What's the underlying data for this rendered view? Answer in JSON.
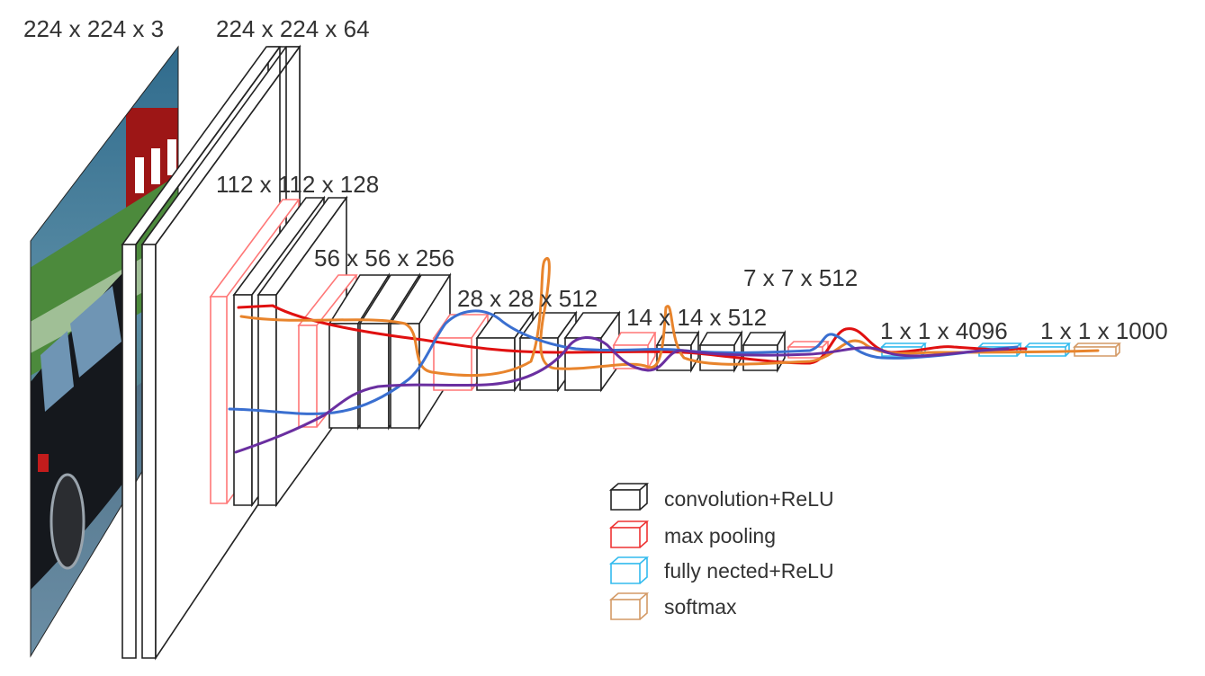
{
  "layer_labels": {
    "input": "224 x 224 x 3",
    "conv1": "224 x 224 x 64",
    "conv2": "112 x 112 x 128",
    "conv3": "56 x 56 x 256",
    "conv4": "28 x 28 x 512",
    "conv5": "14 x 14 x 512",
    "pool5": "7 x 7 x 512",
    "fc": "1 x 1 x 4096",
    "output": "1 x 1 x 1000"
  },
  "legend": [
    {
      "label": "convolution+ReLU",
      "color": "#222222"
    },
    {
      "label": "max pooling",
      "color": "#ee3333"
    },
    {
      "label": "fully nected+ReLU",
      "color": "#33bbee"
    },
    {
      "label": "softmax",
      "color": "#d49a66"
    }
  ],
  "colors": {
    "conv": "#222222",
    "pool": "#ff7777",
    "fc": "#33bbee",
    "softmax": "#d49a66",
    "curve_red": "#e01010",
    "curve_orange": "#e8842c",
    "curve_blue": "#3a6fd0",
    "curve_purple": "#6a2fa0"
  }
}
